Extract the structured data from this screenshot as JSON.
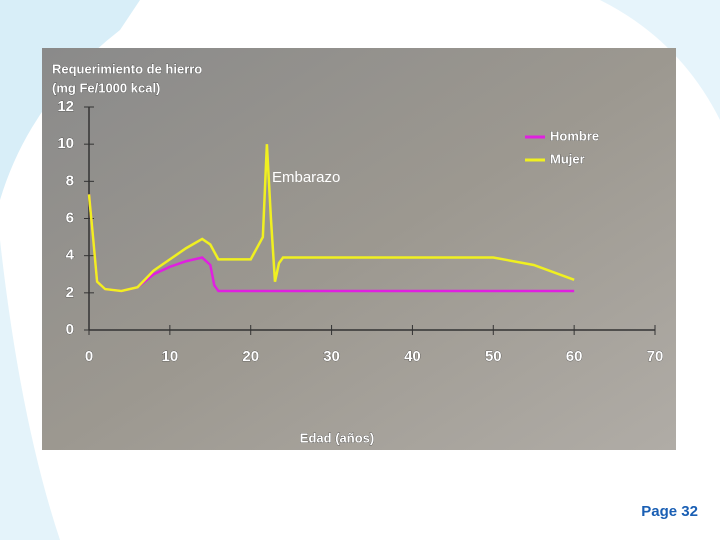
{
  "chart_data": {
    "type": "line",
    "title": "Requerimiento de hierro",
    "ylabel": "(mg Fe/1000 kcal)",
    "xlabel": "Edad (años)",
    "annotation": "Embarazo",
    "x": [
      0,
      0.5,
      1,
      2,
      4,
      6,
      8,
      10,
      12,
      14,
      15,
      15.5,
      16,
      20,
      21.5,
      22,
      22.5,
      23,
      23.5,
      24,
      33,
      50,
      55,
      60
    ],
    "series": [
      {
        "name": "Hombre",
        "color": "#e020e0",
        "values": [
          7.3,
          5,
          2.6,
          2.2,
          2.1,
          2.3,
          3.0,
          3.4,
          3.7,
          3.9,
          3.5,
          2.4,
          2.1,
          2.1,
          2.1,
          2.1,
          2.1,
          2.1,
          2.1,
          2.1,
          2.1,
          2.1,
          2.1,
          2.1
        ]
      },
      {
        "name": "Mujer",
        "color": "#f0f020",
        "values": [
          7.3,
          5,
          2.6,
          2.2,
          2.1,
          2.3,
          3.2,
          3.8,
          4.4,
          4.9,
          4.6,
          4.2,
          3.8,
          3.8,
          5,
          10,
          6,
          2.6,
          3.6,
          3.9,
          3.9,
          3.9,
          3.5,
          2.7
        ]
      }
    ],
    "xlim": [
      0,
      70
    ],
    "xticks": [
      0,
      10,
      20,
      30,
      40,
      50,
      60,
      70
    ],
    "ylim": [
      0,
      12
    ],
    "yticks": [
      0,
      2,
      4,
      6,
      8,
      10,
      12
    ],
    "legend": "upper right"
  },
  "page": "Page 32"
}
